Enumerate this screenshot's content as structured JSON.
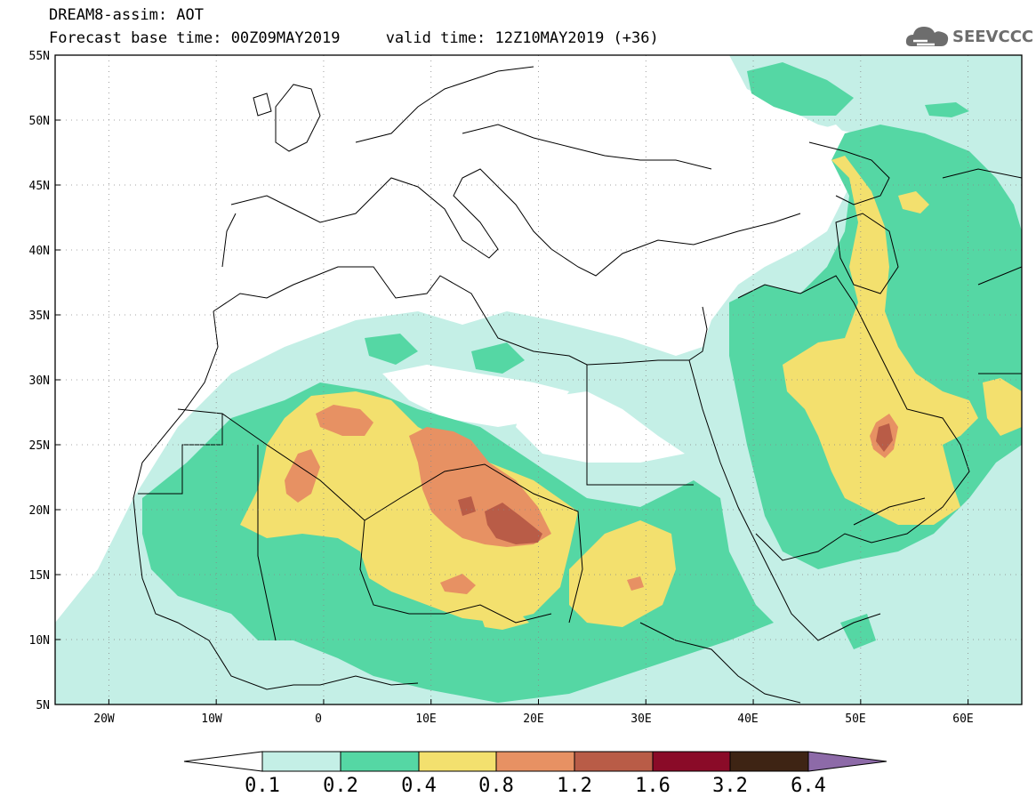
{
  "header": {
    "line1": "DREAM8-assim: AOT",
    "line2": "Forecast base time: 00Z09MAY2019     valid time: 12Z10MAY2019 (+36)"
  },
  "logo": {
    "text": "SEEVCCC",
    "icon": "cloud-icon",
    "color": "#6d6d6d"
  },
  "map": {
    "lat_labels": [
      "55N",
      "50N",
      "45N",
      "40N",
      "35N",
      "30N",
      "25N",
      "20N",
      "15N",
      "10N",
      "5N"
    ],
    "lon_labels": [
      "20W",
      "10W",
      "0",
      "10E",
      "20E",
      "30E",
      "40E",
      "50E",
      "60E"
    ],
    "extent": {
      "lon": [
        -25,
        65
      ],
      "lat": [
        5,
        55
      ]
    }
  },
  "colorbar": {
    "labels": [
      "0.1",
      "0.2",
      "0.4",
      "0.8",
      "1.2",
      "1.6",
      "3.2",
      "6.4"
    ],
    "colors": [
      "#ffffff",
      "#c4efe6",
      "#55d7a4",
      "#f3e06e",
      "#e79163",
      "#b95c47",
      "#8a0b28",
      "#3e2414",
      "#8d6aa8"
    ]
  }
}
